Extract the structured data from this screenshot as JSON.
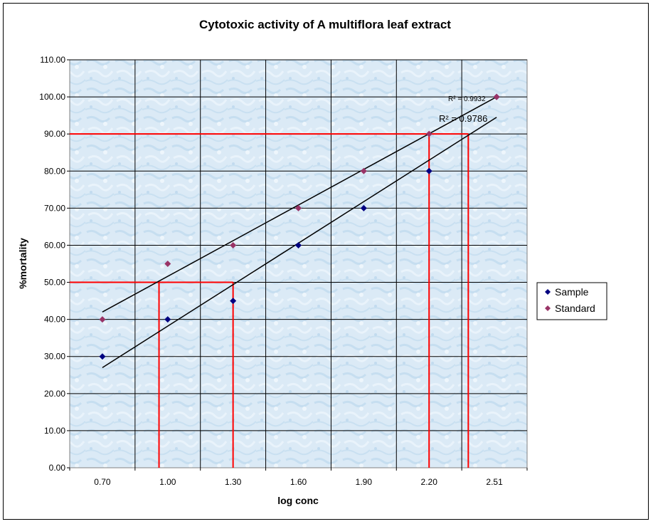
{
  "chart_data": {
    "type": "scatter",
    "title": "Cytotoxic activity of A multiflora leaf extract",
    "xlabel": "log conc",
    "ylabel": "%mortality",
    "x_tick_labels": [
      "0.70",
      "1.00",
      "1.30",
      "1.60",
      "1.90",
      "2.20",
      "2.51"
    ],
    "y_tick_labels": [
      "0.00",
      "10.00",
      "20.00",
      "30.00",
      "40.00",
      "50.00",
      "60.00",
      "70.00",
      "80.00",
      "90.00",
      "100.00",
      "110.00"
    ],
    "ylim": [
      0,
      110
    ],
    "grid": true,
    "legend_position": "right",
    "series": [
      {
        "name": "Sample",
        "color": "#000080",
        "marker": "diamond",
        "x": [
          0.7,
          1.0,
          1.3,
          1.6,
          1.9,
          2.2,
          2.51
        ],
        "y": [
          30,
          40,
          45,
          60,
          70,
          80,
          100
        ],
        "trendline": {
          "x": [
            0.7,
            2.51
          ],
          "y": [
            27,
            94.5
          ]
        },
        "r_squared_label": "R² = 0.9786"
      },
      {
        "name": "Standard",
        "color": "#993366",
        "marker": "diamond",
        "x": [
          0.7,
          1.0,
          1.3,
          1.6,
          1.9,
          2.2,
          2.51
        ],
        "y": [
          40,
          55,
          60,
          70,
          80,
          90,
          100
        ],
        "trendline": {
          "x": [
            0.7,
            2.51
          ],
          "y": [
            42,
            100
          ]
        },
        "r_squared_label": "R² = 0.9932"
      }
    ],
    "reference_lines": [
      {
        "y": 50,
        "x_end": 1.3,
        "color": "#ff0000"
      },
      {
        "y": 90,
        "x_end": 2.38,
        "color": "#ff0000"
      }
    ],
    "reference_drops": [
      0.96,
      1.3,
      2.2,
      2.38
    ]
  }
}
